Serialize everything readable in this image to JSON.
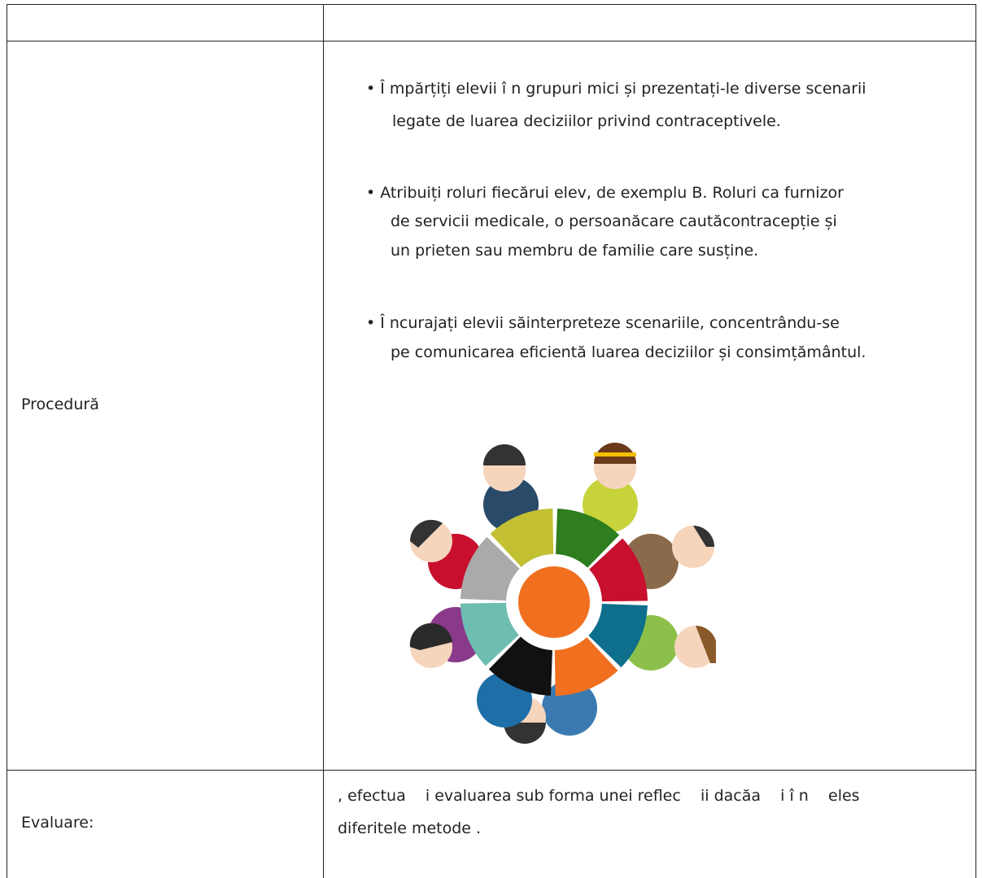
{
  "table": {
    "rows": [
      {
        "label": "Procedură",
        "bullets": [
          [
            "• Î mpărțiți elevii î n grupuri mici și prezentați-le diverse scenarii",
            "legate de luarea deciziilor privind contraceptivele."
          ],
          [
            "• Atribuiți roluri fiecărui elev, de exemplu B. Roluri ca furnizor",
            "de servicii medicale, o persoanăcare cautăcontracepție și",
            "un prieten sau membru de familie care susține."
          ],
          [
            "• Î ncurajați elevii săinterpreteze scenariile, concentrându-se",
            "pe comunicarea eficientă luarea deciziilor și consimțământul."
          ]
        ]
      },
      {
        "label": "Evaluare:",
        "lines": [
          ", efectua    i evaluarea sub forma unei reflec    ii dacăa    i î n    eles",
          "diferitele metode ."
        ]
      }
    ]
  }
}
